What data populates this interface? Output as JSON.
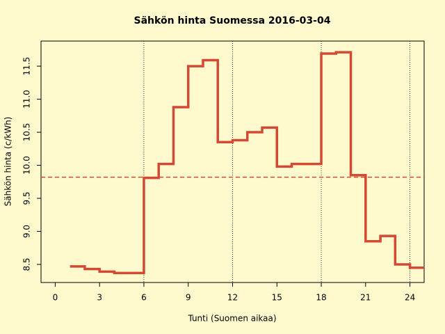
{
  "chart_data": {
    "type": "step",
    "title": "Sähkön hinta Suomessa 2016-03-04",
    "x_label": "Tunti (Suomen aikaa)",
    "y_label": "Sähkön hinta (c/kWh)",
    "x": [
      1,
      2,
      3,
      4,
      5,
      6,
      7,
      8,
      9,
      10,
      11,
      12,
      13,
      14,
      15,
      16,
      17,
      18,
      19,
      20,
      21,
      22,
      23,
      24,
      25
    ],
    "values": [
      8.47,
      8.43,
      8.39,
      8.37,
      8.37,
      9.81,
      10.02,
      10.88,
      11.5,
      11.59,
      10.35,
      10.38,
      10.5,
      10.57,
      9.98,
      10.02,
      10.02,
      11.69,
      11.71,
      9.85,
      8.85,
      8.93,
      8.5,
      8.45,
      8.45
    ],
    "color": "#d24a34",
    "mean_line": 9.82,
    "vlines": [
      6,
      12,
      18,
      24
    ],
    "xlim": [
      -0.96,
      24.96
    ],
    "xticks": [
      0,
      3,
      6,
      9,
      12,
      15,
      18,
      21,
      24
    ],
    "ylim": [
      8.226,
      11.88
    ],
    "yticks": [
      {
        "value": 8.5,
        "label": "8.5"
      },
      {
        "value": 9,
        "label": "9.0"
      },
      {
        "value": 9.5,
        "label": "9.5"
      },
      {
        "value": 10,
        "label": "10.0"
      },
      {
        "value": 10.5,
        "label": "10.5"
      },
      {
        "value": 11,
        "label": "11.0"
      },
      {
        "value": 11.5,
        "label": "11.5"
      }
    ]
  }
}
